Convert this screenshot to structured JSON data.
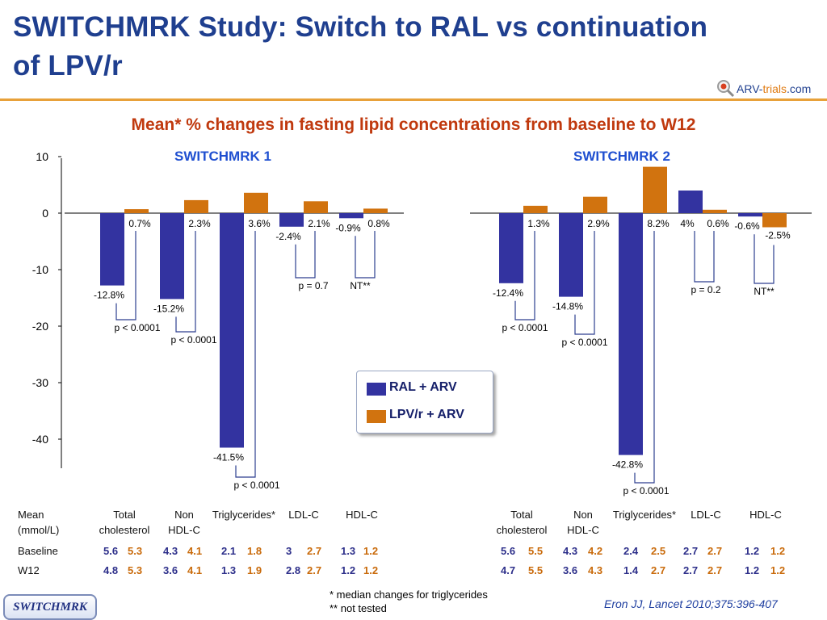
{
  "title": "SWITCHMRK Study: Switch to RAL vs continuation of LPV/r",
  "logo": {
    "prefix": "ARV-",
    "highlight": "trials",
    "suffix": ".com"
  },
  "subtitle": "Mean* % changes in fasting lipid concentrations from baseline to W12",
  "legend": [
    {
      "label": "RAL + ARV",
      "color": "#3333a0"
    },
    {
      "label": "LPV/r + ARV",
      "color": "#d1730f"
    }
  ],
  "chart_data": [
    {
      "type": "bar",
      "title": "SWITCHMRK 1",
      "ylim": [
        -45,
        10
      ],
      "yticks": [
        "10",
        "0",
        "-10",
        "-20",
        "-30",
        "-40"
      ],
      "categories": [
        "Total cholesterol",
        "Non HDL-C",
        "Triglycerides*",
        "LDL-C",
        "HDL-C"
      ],
      "series": [
        {
          "name": "RAL + ARV",
          "values": [
            -12.8,
            -15.2,
            -41.5,
            -2.4,
            -0.9
          ],
          "labels": [
            "-12.8%",
            "-15.2%",
            "-41.5%",
            "-2.4%",
            "-0.9%"
          ]
        },
        {
          "name": "LPV/r + ARV",
          "values": [
            0.7,
            2.3,
            3.6,
            2.1,
            0.8
          ],
          "labels": [
            "0.7%",
            "2.3%",
            "3.6%",
            "2.1%",
            "0.8%"
          ]
        }
      ],
      "pvalues": [
        "p < 0.0001",
        "p < 0.0001",
        "p < 0.0001",
        "p = 0.7",
        "NT**"
      ]
    },
    {
      "type": "bar",
      "title": "SWITCHMRK 2",
      "ylim": [
        -45,
        10
      ],
      "categories": [
        "Total cholesterol",
        "Non HDL-C",
        "Triglycerides*",
        "LDL-C",
        "HDL-C"
      ],
      "series": [
        {
          "name": "RAL + ARV",
          "values": [
            -12.4,
            -14.8,
            -42.8,
            4.0,
            -0.6
          ],
          "labels": [
            "-12.4%",
            "-14.8%",
            "-42.8%",
            "4%",
            "-0.6%"
          ]
        },
        {
          "name": "LPV/r + ARV",
          "values": [
            1.3,
            2.9,
            8.2,
            0.6,
            -2.5
          ],
          "labels": [
            "1.3%",
            "2.9%",
            "8.2%",
            "0.6%",
            "-2.5%"
          ]
        }
      ],
      "pvalues": [
        "p < 0.0001",
        "p < 0.0001",
        "p < 0.0001",
        "p = 0.2",
        "NT**"
      ]
    }
  ],
  "table": {
    "mean_label_1": "Mean",
    "mean_label_2": "(mmol/L)",
    "rows": [
      "Baseline",
      "W12"
    ],
    "columns_1": [
      {
        "top": "Total",
        "bottom": "cholesterol"
      },
      {
        "top": "Non",
        "bottom": "HDL-C"
      },
      {
        "top": "Triglycerides*",
        "bottom": ""
      },
      {
        "top": "LDL-C",
        "bottom": ""
      },
      {
        "top": "HDL-C",
        "bottom": ""
      }
    ],
    "columns_2": [
      {
        "top": "Total",
        "bottom": "cholesterol"
      },
      {
        "top": "Non",
        "bottom": "HDL-C"
      },
      {
        "top": "Triglycerides*",
        "bottom": ""
      },
      {
        "top": "LDL-C",
        "bottom": ""
      },
      {
        "top": "HDL-C",
        "bottom": ""
      }
    ],
    "study1": {
      "baseline": [
        [
          "5.6",
          "5.3"
        ],
        [
          "4.3",
          "4.1"
        ],
        [
          "2.1",
          "1.8"
        ],
        [
          "3",
          "2.7"
        ],
        [
          "1.3",
          "1.2"
        ]
      ],
      "w12": [
        [
          "4.8",
          "5.3"
        ],
        [
          "3.6",
          "4.1"
        ],
        [
          "1.3",
          "1.9"
        ],
        [
          "2.8",
          "2.7"
        ],
        [
          "1.2",
          "1.2"
        ]
      ]
    },
    "study2": {
      "baseline": [
        [
          "5.6",
          "5.5"
        ],
        [
          "4.3",
          "4.2"
        ],
        [
          "2.4",
          "2.5"
        ],
        [
          "2.7",
          "2.7"
        ],
        [
          "1.2",
          "1.2"
        ]
      ],
      "w12": [
        [
          "4.7",
          "5.5"
        ],
        [
          "3.6",
          "4.3"
        ],
        [
          "1.4",
          "2.7"
        ],
        [
          "2.7",
          "2.7"
        ],
        [
          "1.2",
          "1.2"
        ]
      ]
    }
  },
  "footnotes": [
    "* median changes for triglycerides",
    "** not tested"
  ],
  "citation": "Eron JJ, Lancet 2010;375:396-407",
  "badge": "SWITCHMRK"
}
